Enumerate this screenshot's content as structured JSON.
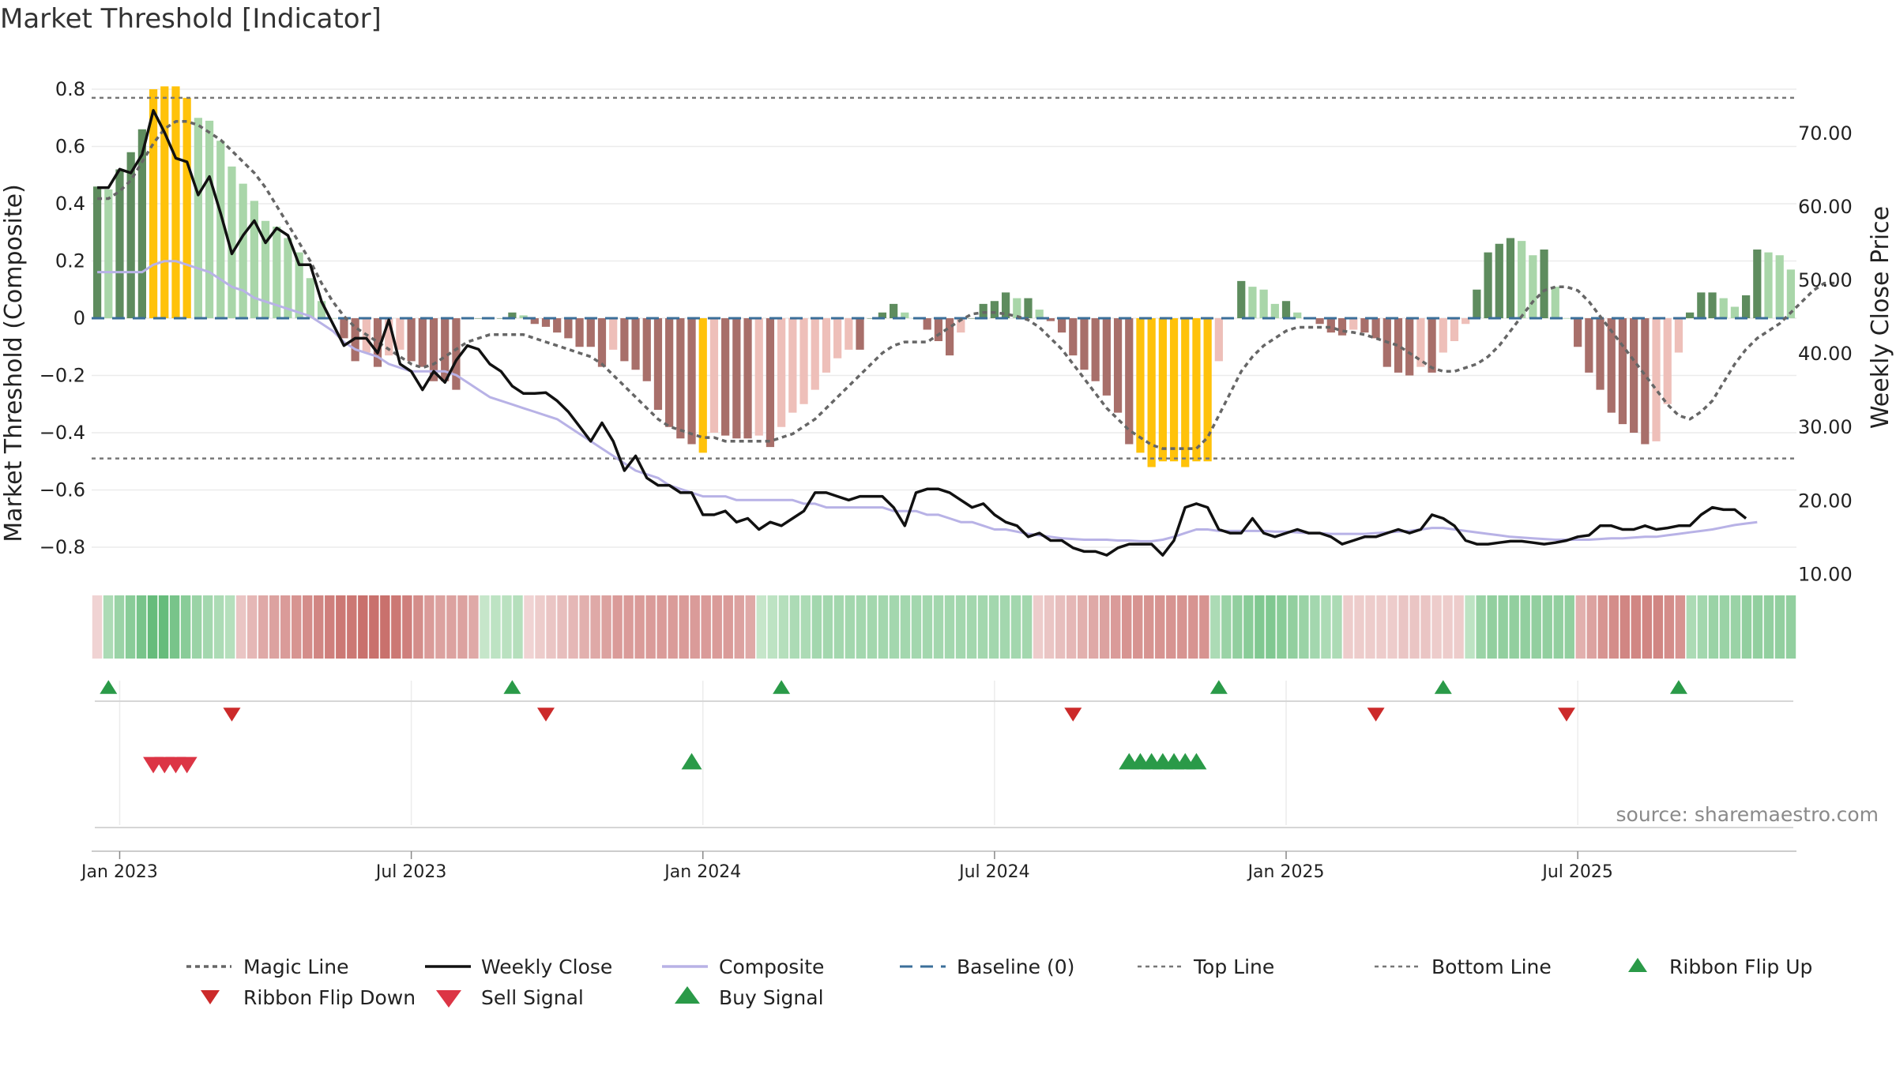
{
  "title": "Market Threshold [Indicator]",
  "source": "source: sharemaestro.com",
  "colors": {
    "bar_green_dark": "#5e8c5e",
    "bar_green_light": "#a9d6a9",
    "bar_red_dark": "#a86f6a",
    "bar_red_light": "#eebfb9",
    "bar_extreme": "#ffc20a",
    "weekly_close": "#111111",
    "composite": "#b8b2e6",
    "magic": "#666666",
    "baseline": "#3b6f9a",
    "threshold": "#777777",
    "buy": "#2a9a48",
    "sell": "#dc3545",
    "flip_down": "#cc2a2a"
  },
  "chart_data": {
    "type": "bar",
    "title": "Market Threshold [Indicator]",
    "ylabel": "Market Threshold (Composite)",
    "y2label": "Weekly Close Price",
    "ylim": [
      -0.9,
      0.8
    ],
    "y2lim": [
      10,
      73
    ],
    "yticks": [
      "0.8",
      "0.6",
      "0.4",
      "0.2",
      "0",
      "−0.2",
      "−0.4",
      "−0.6",
      "−0.8"
    ],
    "y2ticks": [
      "70.00",
      "60.00",
      "50.00",
      "40.00",
      "30.00",
      "20.00",
      "10.00"
    ],
    "xticks": [
      "Jan 2023",
      "Jul 2023",
      "Jan 2024",
      "Jul 2024",
      "Jan 2025",
      "Jul 2025"
    ],
    "top_line": 0.77,
    "bottom_line": -0.49,
    "baseline": 0,
    "legend_placement": "bottom",
    "composite_bars": [
      0.46,
      0.45,
      0.52,
      0.58,
      0.66,
      0.8,
      0.81,
      0.81,
      0.77,
      0.7,
      0.69,
      0.62,
      0.53,
      0.47,
      0.41,
      0.34,
      0.32,
      0.28,
      0.23,
      0.14,
      0.06,
      0.0,
      -0.07,
      -0.15,
      -0.12,
      -0.17,
      -0.13,
      -0.11,
      -0.15,
      -0.17,
      -0.22,
      -0.22,
      -0.25,
      0.0,
      0.0,
      0.0,
      0.0,
      0.02,
      0.01,
      -0.02,
      -0.03,
      -0.05,
      -0.07,
      -0.1,
      -0.1,
      -0.17,
      -0.11,
      -0.15,
      -0.18,
      -0.22,
      -0.32,
      -0.38,
      -0.42,
      -0.44,
      -0.47,
      -0.4,
      -0.41,
      -0.42,
      -0.42,
      -0.41,
      -0.45,
      -0.38,
      -0.33,
      -0.3,
      -0.25,
      -0.19,
      -0.14,
      -0.11,
      -0.11,
      0.0,
      0.02,
      0.05,
      0.02,
      0.0,
      -0.04,
      -0.08,
      -0.13,
      -0.05,
      0.0,
      0.05,
      0.06,
      0.09,
      0.07,
      0.07,
      0.03,
      -0.01,
      -0.05,
      -0.13,
      -0.18,
      -0.22,
      -0.27,
      -0.33,
      -0.44,
      -0.47,
      -0.52,
      -0.5,
      -0.5,
      -0.52,
      -0.5,
      -0.5,
      -0.15,
      0.0,
      0.13,
      0.11,
      0.1,
      0.05,
      0.06,
      0.02,
      0.0,
      -0.02,
      -0.05,
      -0.06,
      -0.04,
      -0.05,
      -0.07,
      -0.17,
      -0.19,
      -0.2,
      -0.17,
      -0.19,
      -0.12,
      -0.08,
      -0.02,
      0.1,
      0.23,
      0.26,
      0.28,
      0.27,
      0.22,
      0.24,
      0.11,
      0.0,
      -0.1,
      -0.19,
      -0.25,
      -0.33,
      -0.37,
      -0.4,
      -0.44,
      -0.43,
      -0.3,
      -0.12,
      0.02,
      0.09,
      0.09,
      0.07,
      0.04,
      0.08,
      0.24,
      0.23,
      0.22,
      0.17
    ],
    "weekly_close": [
      62.5,
      62.5,
      65,
      64.5,
      67,
      73,
      70,
      66.5,
      66,
      61.5,
      64,
      59,
      53.5,
      56,
      58,
      55,
      57,
      56,
      52,
      52,
      47,
      44,
      41,
      42,
      42,
      40,
      44.5,
      38.5,
      37.5,
      35,
      37.5,
      36,
      39,
      41,
      40.5,
      38.5,
      37.5,
      35.5,
      34.5,
      34.5,
      34.6,
      33.5,
      32,
      30,
      28,
      30.5,
      28,
      24,
      26,
      23,
      22,
      22,
      21,
      21,
      18,
      18,
      18.5,
      17,
      17.5,
      16,
      17,
      16.5,
      17.5,
      18.5,
      21,
      21,
      20.5,
      20,
      20.5,
      20.5,
      20.5,
      19,
      16.5,
      21,
      21.5,
      21.5,
      21,
      20,
      19,
      19.5,
      18,
      17,
      16.5,
      15,
      15.5,
      14.5,
      14.5,
      13.5,
      13,
      13,
      12.5,
      13.5,
      14,
      14,
      14,
      12.5,
      14.5,
      19,
      19.5,
      19,
      16,
      15.5,
      15.5,
      17.5,
      15.5,
      15,
      15.5,
      16,
      15.5,
      15.5,
      15,
      14,
      14.5,
      15,
      15,
      15.5,
      16,
      15.5,
      16,
      18,
      17.5,
      16.5,
      14.5,
      14,
      14,
      14.2,
      14.4,
      14.4,
      14.2,
      14,
      14.2,
      14.5,
      15,
      15.2,
      16.5,
      16.5,
      16,
      16,
      16.5,
      16,
      16.2,
      16.5,
      16.5,
      18,
      19,
      18.7,
      18.7,
      17.5
    ],
    "composite_line": [
      51,
      51,
      51,
      51,
      51,
      52,
      52.5,
      52.5,
      52,
      51.5,
      51,
      50,
      49,
      48.5,
      47.5,
      47,
      46.5,
      46,
      45.5,
      45,
      44,
      43,
      41.5,
      40.5,
      40,
      39.5,
      38.5,
      38,
      37.5,
      37.5,
      37.5,
      37.5,
      37,
      36,
      35,
      34,
      33.5,
      33,
      32.5,
      32,
      31.5,
      31,
      30,
      29,
      28,
      27,
      26,
      25,
      24,
      23.5,
      23,
      22,
      21.5,
      21,
      20.5,
      20.5,
      20.5,
      20,
      20,
      20,
      20,
      20,
      20,
      19.5,
      19.5,
      19,
      19,
      19,
      19,
      19,
      19,
      18.5,
      18.5,
      18.5,
      18,
      18,
      17.5,
      17,
      17,
      16.5,
      16,
      16,
      15.7,
      15.4,
      15.2,
      15,
      14.8,
      14.7,
      14.6,
      14.6,
      14.6,
      14.5,
      14.5,
      14.4,
      14.4,
      14.6,
      15,
      15.5,
      16,
      16,
      15.8,
      15.8,
      15.8,
      15.8,
      15.8,
      15.7,
      15.7,
      15.6,
      15.5,
      15.5,
      15.4,
      15.4,
      15.4,
      15.4,
      15.5,
      15.6,
      15.7,
      15.8,
      16,
      16.2,
      16.2,
      16,
      15.8,
      15.6,
      15.4,
      15.2,
      15,
      14.9,
      14.8,
      14.7,
      14.6,
      14.6,
      14.6,
      14.6,
      14.7,
      14.8,
      14.8,
      14.9,
      15,
      15,
      15.2,
      15.4,
      15.6,
      15.8,
      16,
      16.3,
      16.6,
      16.8,
      17
    ],
    "magic_line": [
      61,
      61,
      62,
      63.5,
      66,
      68.5,
      70.5,
      71.5,
      71.5,
      71,
      70,
      69,
      67.5,
      66,
      64.5,
      62.5,
      60,
      57.5,
      55,
      52.5,
      49.5,
      47,
      45,
      43.5,
      42.5,
      41.5,
      40.5,
      39.5,
      38.5,
      38,
      38.5,
      39.5,
      40.5,
      41.5,
      42,
      42.5,
      42.5,
      42.5,
      42.5,
      42,
      41.5,
      41,
      40.5,
      40,
      39.5,
      38.5,
      37,
      35.5,
      34,
      32.5,
      31,
      30,
      29.5,
      29,
      28.5,
      28.5,
      28,
      28,
      28,
      28,
      28,
      28.5,
      29,
      30,
      31,
      32.5,
      34,
      35.5,
      37,
      38.5,
      40,
      41,
      41.5,
      41.5,
      41.5,
      42.5,
      43.5,
      44.5,
      45.3,
      45.5,
      45.5,
      45.3,
      45,
      44.5,
      43.5,
      42,
      40.5,
      38.5,
      36.5,
      34.5,
      32.5,
      31,
      29.5,
      28.5,
      27.5,
      27,
      27,
      27,
      27,
      28.5,
      31.5,
      34.5,
      37.5,
      39.5,
      41,
      42,
      43,
      43.5,
      43.5,
      43.5,
      43.5,
      43,
      42.8,
      42.5,
      42,
      41.5,
      41,
      40,
      39,
      38,
      37.5,
      37.5,
      38,
      38.5,
      39.5,
      41,
      43,
      45,
      47,
      48.5,
      49,
      49,
      48.5,
      47,
      45,
      43,
      41,
      39,
      37,
      35,
      33,
      31.5,
      31,
      32,
      33.5,
      36,
      38.5,
      40.5,
      42,
      43,
      44,
      45.5,
      47,
      48.5,
      49.5,
      49.5
    ]
  },
  "x_axis_weeks": {
    "start_index": 0,
    "jan2023": 2,
    "jul2023": 28,
    "jan2024": 54,
    "jul2024": 80,
    "jan2025": 106,
    "jul2025": 132
  },
  "ribbon": {
    "values": [
      -0.1,
      0.3,
      0.4,
      0.5,
      0.6,
      0.7,
      0.7,
      0.6,
      0.5,
      0.4,
      0.35,
      0.3,
      0.25,
      -0.2,
      -0.3,
      -0.4,
      -0.45,
      -0.5,
      -0.55,
      -0.6,
      -0.65,
      -0.7,
      -0.75,
      -0.75,
      -0.8,
      -0.8,
      -0.8,
      -0.75,
      -0.7,
      -0.6,
      -0.5,
      -0.45,
      -0.45,
      -0.45,
      -0.4,
      0.15,
      0.2,
      0.22,
      0.25,
      -0.1,
      -0.15,
      -0.2,
      -0.25,
      -0.3,
      -0.35,
      -0.4,
      -0.45,
      -0.5,
      -0.5,
      -0.5,
      -0.5,
      -0.5,
      -0.5,
      -0.5,
      -0.5,
      -0.5,
      -0.5,
      -0.5,
      -0.45,
      -0.4,
      0.15,
      0.2,
      0.25,
      0.3,
      0.3,
      0.35,
      0.35,
      0.35,
      0.35,
      0.35,
      0.35,
      0.35,
      0.35,
      0.35,
      0.35,
      0.35,
      0.35,
      0.35,
      0.35,
      0.35,
      0.35,
      0.35,
      0.35,
      0.35,
      0.35,
      -0.15,
      -0.2,
      -0.25,
      -0.3,
      -0.35,
      -0.4,
      -0.45,
      -0.5,
      -0.55,
      -0.55,
      -0.55,
      -0.55,
      -0.55,
      -0.55,
      -0.55,
      -0.55,
      0.3,
      0.4,
      0.45,
      0.5,
      0.55,
      0.55,
      0.5,
      0.45,
      0.4,
      0.35,
      0.3,
      0.3,
      -0.15,
      -0.15,
      -0.15,
      -0.15,
      -0.15,
      -0.2,
      -0.2,
      -0.2,
      -0.15,
      -0.15,
      -0.15,
      0.2,
      0.4,
      0.45,
      0.45,
      0.45,
      0.45,
      0.45,
      0.45,
      0.45,
      0.45,
      -0.35,
      -0.45,
      -0.55,
      -0.6,
      -0.65,
      -0.65,
      -0.65,
      -0.65,
      -0.6,
      -0.55,
      0.3,
      0.35,
      0.4,
      0.4,
      0.4,
      0.45,
      0.45,
      0.45,
      0.45,
      0.45
    ]
  },
  "signals": {
    "ribbon_flip_up_weeks": [
      1,
      37,
      61,
      100,
      120,
      141
    ],
    "ribbon_flip_down_weeks": [
      12,
      40,
      87,
      114,
      131
    ],
    "sell_signal_weeks": [
      5,
      6,
      7,
      8
    ],
    "buy_signal_weeks": [
      53,
      92,
      93,
      94,
      95,
      96,
      97,
      98
    ]
  },
  "legend": {
    "magic_line": "Magic Line",
    "weekly_close": "Weekly Close",
    "composite": "Composite",
    "baseline": "Baseline (0)",
    "top_line": "Top Line",
    "bottom_line": "Bottom Line",
    "ribbon_flip_up": "Ribbon Flip Up",
    "ribbon_flip_down": "Ribbon Flip Down",
    "sell_signal": "Sell Signal",
    "buy_signal": "Buy Signal"
  }
}
